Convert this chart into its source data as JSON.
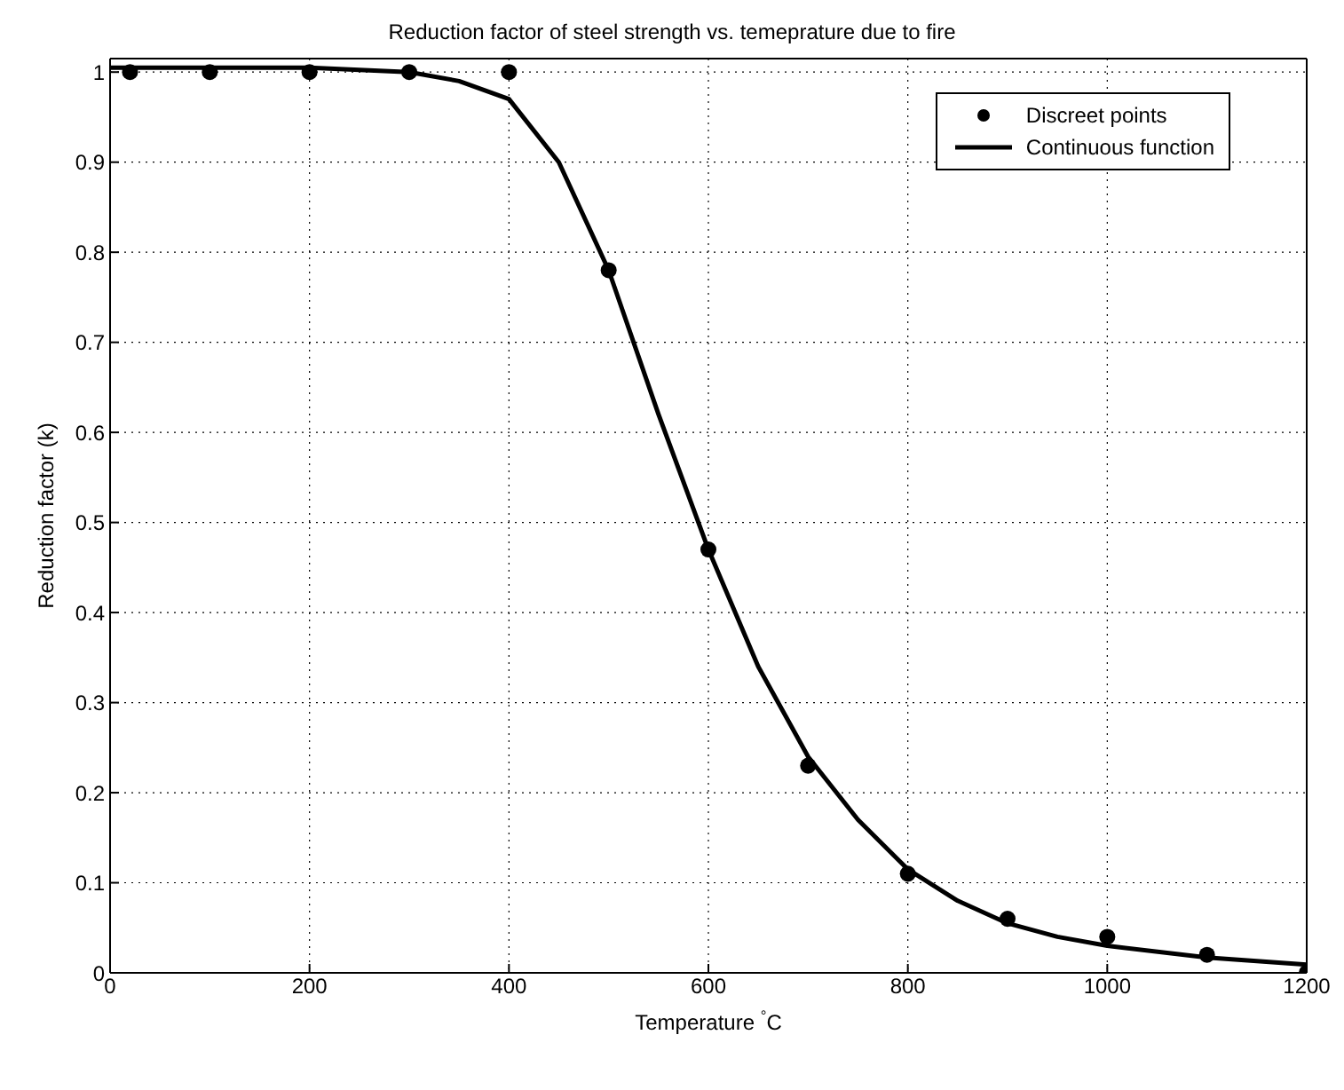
{
  "chart_data": {
    "type": "line",
    "title": "Reduction factor of steel strength vs. temeprature due to fire",
    "xlabel": "Temperature $^{°}$C",
    "ylabel": "Reduction factor (k)",
    "xlim": [
      0,
      1200
    ],
    "xticks": [
      0,
      200,
      400,
      600,
      800,
      1000,
      1200
    ],
    "ylim": [
      0,
      1.015
    ],
    "yticks": [
      0,
      0.1,
      0.2,
      0.3,
      0.4,
      0.5,
      0.6,
      0.7,
      0.8,
      0.9,
      1
    ],
    "grid": true,
    "legend": "top right",
    "series": [
      {
        "name": "Discreet points",
        "type": "scatter",
        "color": "#000000",
        "marker": "circle",
        "x": [
          20,
          100,
          200,
          300,
          400,
          500,
          600,
          700,
          800,
          900,
          1000,
          1100,
          1200
        ],
        "values": [
          1,
          1,
          1,
          1,
          1,
          0.78,
          0.47,
          0.23,
          0.11,
          0.06,
          0.04,
          0.02,
          0
        ]
      },
      {
        "name": "Continuous function",
        "color": "#000000",
        "marker": "none",
        "line_style": "solid",
        "x": [
          0,
          100,
          200,
          300,
          350,
          400,
          450,
          500,
          550,
          600,
          650,
          700,
          750,
          800,
          850,
          900,
          950,
          1000,
          1100,
          1200
        ],
        "values": [
          1.005,
          1.005,
          1.005,
          1.0,
          0.99,
          0.97,
          0.9,
          0.78,
          0.62,
          0.47,
          0.34,
          0.24,
          0.17,
          0.115,
          0.08,
          0.055,
          0.04,
          0.03,
          0.017,
          0.009
        ]
      }
    ]
  }
}
